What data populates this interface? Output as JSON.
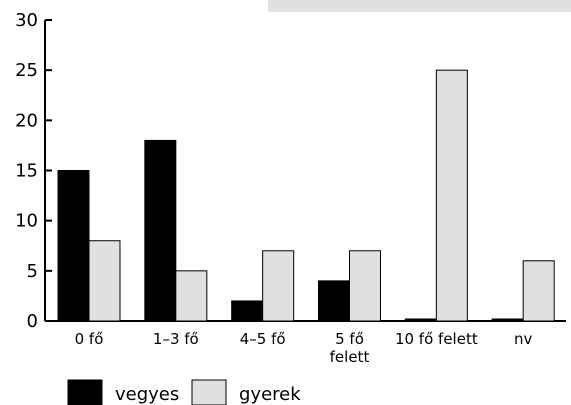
{
  "chart_data": {
    "type": "bar",
    "categories": [
      [
        "0 fő"
      ],
      [
        "1–3 fő"
      ],
      [
        "4–5 fő"
      ],
      [
        "5 fő",
        "felett"
      ],
      [
        "10 fő felett"
      ],
      [
        "nv"
      ]
    ],
    "series": [
      {
        "name": "vegyes",
        "color": "#000000",
        "values": [
          15,
          18,
          2,
          4,
          0.2,
          0.2
        ]
      },
      {
        "name": "gyerek",
        "color": "#e0e0e0",
        "values": [
          8,
          5,
          7,
          7,
          25,
          6
        ]
      }
    ],
    "yticks": [
      0,
      5,
      10,
      15,
      20,
      25,
      30
    ],
    "ylim": [
      0,
      30
    ],
    "grid": false,
    "legend_position": "bottom"
  }
}
